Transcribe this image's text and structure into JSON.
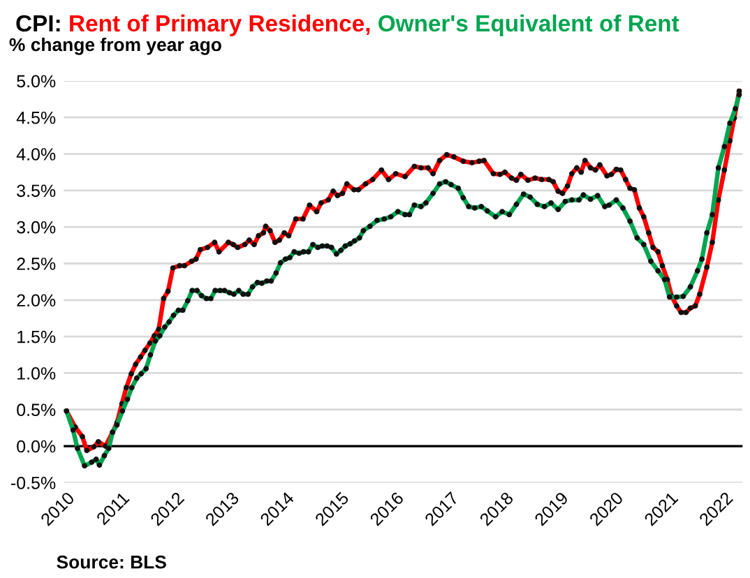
{
  "chart_data": {
    "type": "line",
    "title": "CPI:",
    "subtitle": "% change from year ago",
    "annotations": [
      "Source: BLS"
    ],
    "xlim": [
      2009.95,
      2022.32
    ],
    "ylim": [
      -0.5,
      5.0
    ],
    "xticks": [
      2010,
      2011,
      2012,
      2013,
      2014,
      2015,
      2016,
      2017,
      2018,
      2019,
      2020,
      2021,
      2022
    ],
    "yticks": [
      {
        "value": -0.5,
        "label": "-0.5%"
      },
      {
        "value": 0.0,
        "label": "0.0%"
      },
      {
        "value": 0.5,
        "label": "0.5%"
      },
      {
        "value": 1.0,
        "label": "1.0%"
      },
      {
        "value": 1.5,
        "label": "1.5%"
      },
      {
        "value": 2.0,
        "label": "2.0%"
      },
      {
        "value": 2.5,
        "label": "2.5%"
      },
      {
        "value": 3.0,
        "label": "3.0%"
      },
      {
        "value": 3.5,
        "label": "3.5%"
      },
      {
        "value": 4.0,
        "label": "4.0%"
      },
      {
        "value": 4.5,
        "label": "4.5%"
      },
      {
        "value": 5.0,
        "label": "5.0%"
      }
    ],
    "grid": "y",
    "legend": false,
    "marker": "circle",
    "line_style": "solid",
    "ref_lines": [
      {
        "axis": "y",
        "value": 0,
        "color": "#000000"
      }
    ],
    "series": [
      {
        "name": "Rent of Primary Residence,",
        "color": "#ff0000",
        "x": [
          2010.0,
          2010.16,
          2010.29,
          2010.37,
          2010.5,
          2010.58,
          2010.71,
          2010.84,
          2010.92,
          2011.01,
          2011.09,
          2011.18,
          2011.26,
          2011.35,
          2011.43,
          2011.52,
          2011.6,
          2011.68,
          2011.77,
          2011.85,
          2011.94,
          2012.06,
          2012.15,
          2012.28,
          2012.36,
          2012.44,
          2012.57,
          2012.7,
          2012.78,
          2012.95,
          2013.04,
          2013.12,
          2013.25,
          2013.33,
          2013.42,
          2013.5,
          2013.59,
          2013.63,
          2013.71,
          2013.8,
          2013.88,
          2013.97,
          2014.05,
          2014.18,
          2014.31,
          2014.43,
          2014.56,
          2014.64,
          2014.77,
          2014.86,
          2014.94,
          2015.03,
          2015.11,
          2015.24,
          2015.32,
          2015.45,
          2015.58,
          2015.74,
          2015.87,
          2016.0,
          2016.17,
          2016.34,
          2016.46,
          2016.59,
          2016.68,
          2016.8,
          2016.93,
          2017.06,
          2017.23,
          2017.39,
          2017.52,
          2017.61,
          2017.78,
          2017.9,
          2017.99,
          2018.11,
          2018.2,
          2018.28,
          2018.41,
          2018.54,
          2018.66,
          2018.79,
          2018.87,
          2018.96,
          2019.04,
          2019.13,
          2019.21,
          2019.3,
          2019.38,
          2019.45,
          2019.55,
          2019.64,
          2019.72,
          2019.85,
          2019.93,
          2020.02,
          2020.1,
          2020.19,
          2020.27,
          2020.35,
          2020.44,
          2020.52,
          2020.61,
          2020.69,
          2020.78,
          2020.86,
          2020.95,
          2021.03,
          2021.12,
          2021.2,
          2021.29,
          2021.37,
          2021.46,
          2021.54,
          2021.67,
          2021.77,
          2021.88,
          2021.99,
          2022.09,
          2022.17,
          2022.26
        ],
        "values": [
          0.48,
          0.26,
          0.13,
          -0.06,
          -0.01,
          0.06,
          0.0,
          0.19,
          0.32,
          0.58,
          0.8,
          0.99,
          1.12,
          1.22,
          1.31,
          1.41,
          1.51,
          1.6,
          2.02,
          2.12,
          2.44,
          2.47,
          2.47,
          2.53,
          2.56,
          2.69,
          2.72,
          2.79,
          2.66,
          2.79,
          2.76,
          2.72,
          2.76,
          2.82,
          2.76,
          2.88,
          2.92,
          3.01,
          2.95,
          2.79,
          2.82,
          2.92,
          2.88,
          3.11,
          3.11,
          3.3,
          3.21,
          3.33,
          3.37,
          3.49,
          3.43,
          3.46,
          3.59,
          3.51,
          3.51,
          3.59,
          3.65,
          3.78,
          3.65,
          3.73,
          3.69,
          3.83,
          3.81,
          3.81,
          3.73,
          3.91,
          3.99,
          3.96,
          3.9,
          3.88,
          3.9,
          3.91,
          3.73,
          3.72,
          3.75,
          3.67,
          3.64,
          3.72,
          3.64,
          3.67,
          3.65,
          3.65,
          3.62,
          3.49,
          3.46,
          3.56,
          3.73,
          3.81,
          3.75,
          3.91,
          3.81,
          3.78,
          3.85,
          3.7,
          3.72,
          3.79,
          3.78,
          3.65,
          3.53,
          3.51,
          3.26,
          3.14,
          2.92,
          2.72,
          2.66,
          2.47,
          2.28,
          2.05,
          1.92,
          1.83,
          1.83,
          1.89,
          1.92,
          2.08,
          2.45,
          2.79,
          3.37,
          3.78,
          4.18,
          4.49,
          4.86
        ]
      },
      {
        "name": "Owner's Equivalent of Rent",
        "color": "#00a550",
        "x": [
          2010.0,
          2010.12,
          2010.2,
          2010.33,
          2010.46,
          2010.54,
          2010.6,
          2010.69,
          2010.77,
          2010.84,
          2010.92,
          2011.02,
          2011.11,
          2011.19,
          2011.28,
          2011.36,
          2011.45,
          2011.53,
          2011.62,
          2011.7,
          2011.79,
          2011.87,
          2011.95,
          2012.04,
          2012.12,
          2012.21,
          2012.29,
          2012.38,
          2012.46,
          2012.55,
          2012.63,
          2012.71,
          2012.8,
          2012.88,
          2012.97,
          2013.05,
          2013.14,
          2013.22,
          2013.31,
          2013.39,
          2013.48,
          2013.56,
          2013.65,
          2013.73,
          2013.82,
          2013.9,
          2013.99,
          2014.07,
          2014.15,
          2014.24,
          2014.32,
          2014.41,
          2014.49,
          2014.58,
          2014.66,
          2014.75,
          2014.83,
          2014.92,
          2015.0,
          2015.08,
          2015.17,
          2015.25,
          2015.34,
          2015.41,
          2015.53,
          2015.66,
          2015.79,
          2015.91,
          2016.04,
          2016.17,
          2016.25,
          2016.34,
          2016.46,
          2016.55,
          2016.68,
          2016.8,
          2016.91,
          2017.01,
          2017.14,
          2017.23,
          2017.33,
          2017.44,
          2017.56,
          2017.67,
          2017.82,
          2017.94,
          2018.07,
          2018.2,
          2018.33,
          2018.45,
          2018.58,
          2018.71,
          2018.83,
          2018.96,
          2019.09,
          2019.21,
          2019.34,
          2019.42,
          2019.55,
          2019.68,
          2019.81,
          2019.89,
          2020.02,
          2020.14,
          2020.27,
          2020.4,
          2020.52,
          2020.65,
          2020.78,
          2020.9,
          2020.99,
          2021.12,
          2021.24,
          2021.37,
          2021.5,
          2021.58,
          2021.67,
          2021.77,
          2021.88,
          2021.99,
          2022.09,
          2022.19,
          2022.26
        ],
        "values": [
          0.48,
          0.22,
          -0.03,
          -0.27,
          -0.22,
          -0.18,
          -0.26,
          -0.13,
          -0.03,
          0.19,
          0.29,
          0.48,
          0.64,
          0.8,
          0.93,
          0.99,
          1.06,
          1.25,
          1.44,
          1.51,
          1.63,
          1.7,
          1.79,
          1.86,
          1.86,
          1.99,
          2.13,
          2.13,
          2.06,
          2.02,
          2.02,
          2.13,
          2.13,
          2.13,
          2.1,
          2.08,
          2.13,
          2.08,
          2.08,
          2.18,
          2.24,
          2.23,
          2.26,
          2.26,
          2.37,
          2.51,
          2.56,
          2.58,
          2.66,
          2.64,
          2.66,
          2.66,
          2.76,
          2.72,
          2.74,
          2.74,
          2.72,
          2.63,
          2.68,
          2.74,
          2.77,
          2.81,
          2.85,
          2.95,
          3.01,
          3.09,
          3.11,
          3.14,
          3.21,
          3.17,
          3.17,
          3.3,
          3.28,
          3.33,
          3.46,
          3.59,
          3.62,
          3.58,
          3.53,
          3.4,
          3.28,
          3.26,
          3.28,
          3.22,
          3.14,
          3.21,
          3.17,
          3.31,
          3.45,
          3.41,
          3.31,
          3.28,
          3.33,
          3.24,
          3.35,
          3.37,
          3.37,
          3.44,
          3.38,
          3.43,
          3.28,
          3.3,
          3.37,
          3.26,
          3.08,
          2.85,
          2.76,
          2.53,
          2.4,
          2.28,
          2.04,
          2.04,
          2.05,
          2.18,
          2.4,
          2.56,
          2.92,
          3.17,
          3.81,
          4.1,
          4.42,
          4.62,
          4.81
        ]
      }
    ]
  }
}
